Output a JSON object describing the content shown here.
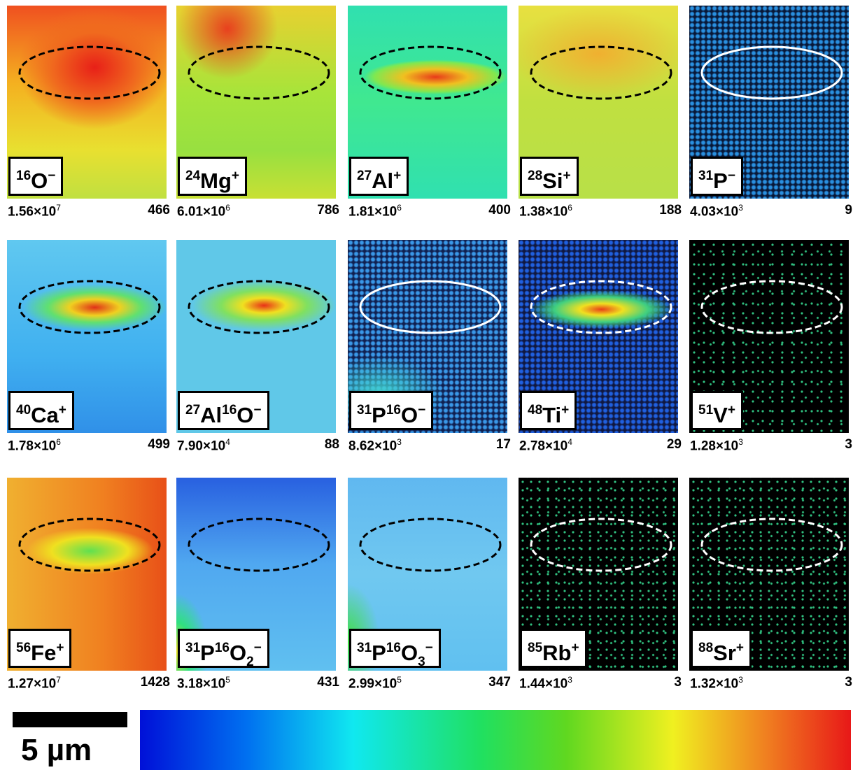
{
  "panels": [
    {
      "label": [
        {
          "sup": "16"
        },
        {
          "base": "O"
        },
        {
          "sup": "−"
        }
      ],
      "counts": {
        "mantissa": "1.56×10",
        "exponent": "7"
      },
      "max": 466
    },
    {
      "label": [
        {
          "sup": "24"
        },
        {
          "base": "Mg"
        },
        {
          "sup": "+"
        }
      ],
      "counts": {
        "mantissa": "6.01×10",
        "exponent": "6"
      },
      "max": 786
    },
    {
      "label": [
        {
          "sup": "27"
        },
        {
          "base": "Al"
        },
        {
          "sup": "+"
        }
      ],
      "counts": {
        "mantissa": "1.81×10",
        "exponent": "6"
      },
      "max": 400
    },
    {
      "label": [
        {
          "sup": "28"
        },
        {
          "base": "Si"
        },
        {
          "sup": "+"
        }
      ],
      "counts": {
        "mantissa": "1.38×10",
        "exponent": "6"
      },
      "max": 188
    },
    {
      "label": [
        {
          "sup": "31"
        },
        {
          "base": "P"
        },
        {
          "sup": "−"
        }
      ],
      "counts": {
        "mantissa": "4.03×10",
        "exponent": "3"
      },
      "max": 9
    },
    {
      "label": [
        {
          "sup": "40"
        },
        {
          "base": "Ca"
        },
        {
          "sup": "+"
        }
      ],
      "counts": {
        "mantissa": "1.78×10",
        "exponent": "6"
      },
      "max": 499
    },
    {
      "label": [
        {
          "sup": "27"
        },
        {
          "base": "Al"
        },
        {
          "sup": "16"
        },
        {
          "base": "O"
        },
        {
          "sup": "−"
        }
      ],
      "counts": {
        "mantissa": "7.90×10",
        "exponent": "4"
      },
      "max": 88
    },
    {
      "label": [
        {
          "sup": "31"
        },
        {
          "base": "P"
        },
        {
          "sup": "16"
        },
        {
          "base": "O"
        },
        {
          "sup": "−"
        }
      ],
      "counts": {
        "mantissa": "8.62×10",
        "exponent": "3"
      },
      "max": 17
    },
    {
      "label": [
        {
          "sup": "48"
        },
        {
          "base": "Ti"
        },
        {
          "sup": "+"
        }
      ],
      "counts": {
        "mantissa": "2.78×10",
        "exponent": "4"
      },
      "max": 29
    },
    {
      "label": [
        {
          "sup": "51"
        },
        {
          "base": "V"
        },
        {
          "sup": "+"
        }
      ],
      "counts": {
        "mantissa": "1.28×10",
        "exponent": "3"
      },
      "max": 3
    },
    {
      "label": [
        {
          "sup": "56"
        },
        {
          "base": "Fe"
        },
        {
          "sup": "+"
        }
      ],
      "counts": {
        "mantissa": "1.27×10",
        "exponent": "7"
      },
      "max": 1428
    },
    {
      "label": [
        {
          "sup": "31"
        },
        {
          "base": "P"
        },
        {
          "sup": "16"
        },
        {
          "base": "O"
        },
        {
          "sub": "2"
        },
        {
          "sup": "−"
        }
      ],
      "counts": {
        "mantissa": "3.18×10",
        "exponent": "5"
      },
      "max": 431
    },
    {
      "label": [
        {
          "sup": "31"
        },
        {
          "base": "P"
        },
        {
          "sup": "16"
        },
        {
          "base": "O"
        },
        {
          "sub": "3"
        },
        {
          "sup": "−"
        }
      ],
      "counts": {
        "mantissa": "2.99×10",
        "exponent": "5"
      },
      "max": 347
    },
    {
      "label": [
        {
          "sup": "85"
        },
        {
          "base": "Rb"
        },
        {
          "sup": "+"
        }
      ],
      "counts": {
        "mantissa": "1.44×10",
        "exponent": "3"
      },
      "max": 3
    },
    {
      "label": [
        {
          "sup": "88"
        },
        {
          "base": "Sr"
        },
        {
          "sup": "+"
        }
      ],
      "counts": {
        "mantissa": "1.32×10",
        "exponent": "3"
      },
      "max": 3
    }
  ],
  "scale_bar": "5 µm"
}
